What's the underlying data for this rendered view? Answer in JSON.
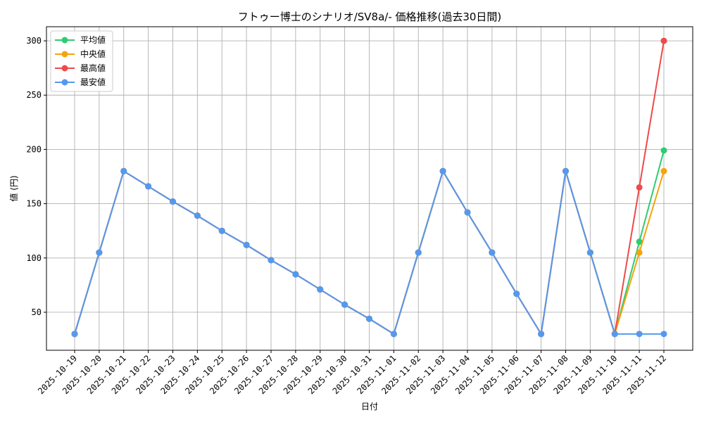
{
  "chart_data": {
    "type": "line",
    "title": "フトゥー博士のシナリオ/SV8a/- 価格推移(過去30日間)",
    "xlabel": "日付",
    "ylabel": "値 (円)",
    "ylim": [
      15,
      313
    ],
    "yticks": [
      50,
      100,
      150,
      200,
      250,
      300
    ],
    "grid": true,
    "legend_position": "top-left",
    "categories": [
      "2025-10-19",
      "2025-10-20",
      "2025-10-21",
      "2025-10-22",
      "2025-10-23",
      "2025-10-24",
      "2025-10-25",
      "2025-10-26",
      "2025-10-27",
      "2025-10-28",
      "2025-10-29",
      "2025-10-30",
      "2025-10-31",
      "2025-11-01",
      "2025-11-02",
      "2025-11-03",
      "2025-11-04",
      "2025-11-05",
      "2025-11-06",
      "2025-11-07",
      "2025-11-08",
      "2025-11-09",
      "2025-11-10",
      "2025-11-11",
      "2025-11-12"
    ],
    "series": [
      {
        "name": "平均値",
        "color": "#2ecc71",
        "values": [
          30,
          105,
          180,
          166,
          152,
          139,
          125,
          112,
          98,
          85,
          71,
          57,
          44,
          30,
          105,
          180,
          142,
          105,
          67,
          30,
          180,
          105,
          30,
          115,
          199
        ]
      },
      {
        "name": "中央値",
        "color": "#f5a30f",
        "values": [
          30,
          105,
          180,
          166,
          152,
          139,
          125,
          112,
          98,
          85,
          71,
          57,
          44,
          30,
          105,
          180,
          142,
          105,
          67,
          30,
          180,
          105,
          30,
          105,
          180
        ]
      },
      {
        "name": "最高値",
        "color": "#ee4a4a",
        "values": [
          30,
          105,
          180,
          166,
          152,
          139,
          125,
          112,
          98,
          85,
          71,
          57,
          44,
          30,
          105,
          180,
          142,
          105,
          67,
          30,
          180,
          105,
          30,
          165,
          300
        ]
      },
      {
        "name": "最安値",
        "color": "#5599ee",
        "values": [
          30,
          105,
          180,
          166,
          152,
          139,
          125,
          112,
          98,
          85,
          71,
          57,
          44,
          30,
          105,
          180,
          142,
          105,
          67,
          30,
          180,
          105,
          30,
          30,
          30
        ]
      }
    ]
  }
}
